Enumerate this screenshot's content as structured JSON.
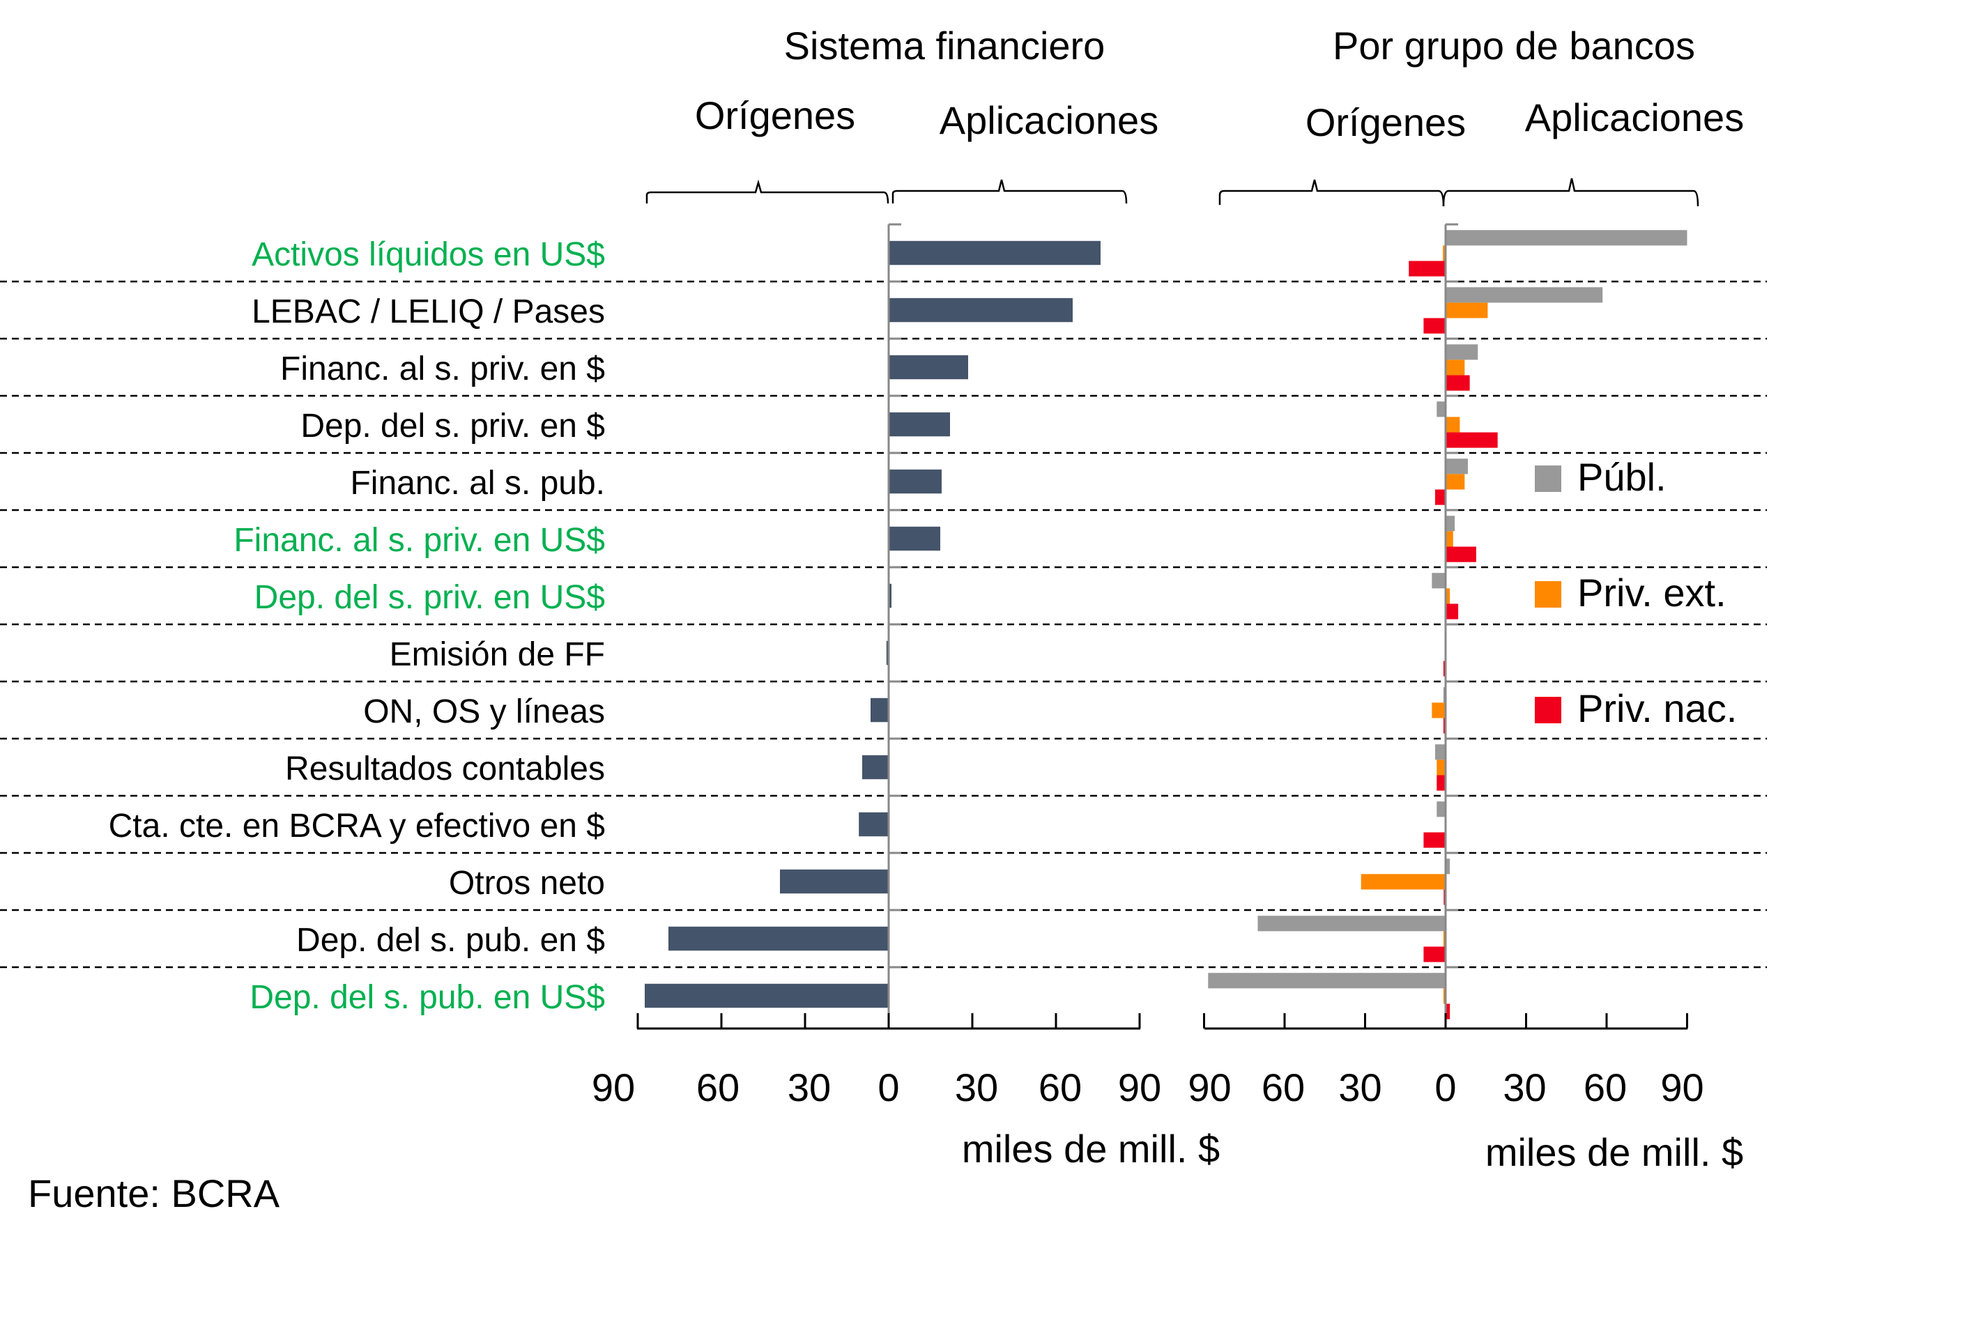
{
  "chart_data": [
    {
      "type": "bar",
      "orientation": "horizontal",
      "title": "Sistema financiero",
      "left_header": "Orígenes",
      "right_header": "Aplicaciones",
      "xlabel": "miles de mill. $",
      "xlim": [
        -90,
        90
      ],
      "ticks": [
        -90,
        -60,
        -30,
        0,
        30,
        60,
        90
      ],
      "tick_labels": [
        "90",
        "60",
        "30",
        "0",
        "30",
        "60",
        "90"
      ],
      "grid": "dashed row separators",
      "categories": [
        "Activos líquidos en US$",
        "LEBAC / LELIQ / Pases",
        "Financ. al s. priv. en $",
        "Dep. del s. priv. en $",
        "Financ. al s. pub.",
        "Financ. al s. priv. en US$",
        "Dep. del s. priv. en US$",
        "Emisión de FF",
        "ON, OS y líneas",
        "Resultados contables",
        "Cta. cte. en BCRA y efectivo en $",
        "Otros neto",
        "Dep. del s. pub. en $",
        "Dep. del s. pub. en US$"
      ],
      "category_highlight": [
        true,
        false,
        false,
        false,
        false,
        true,
        true,
        false,
        false,
        false,
        false,
        false,
        false,
        true
      ],
      "series": [
        {
          "name": "Sistema financiero",
          "color": "#44546A",
          "values": [
            76,
            66,
            28.5,
            22,
            19,
            18.5,
            1,
            -0.8,
            -6.5,
            -9.5,
            -10.7,
            -39,
            -79,
            -87.5
          ]
        }
      ]
    },
    {
      "type": "bar",
      "orientation": "horizontal",
      "title": "Por grupo de bancos",
      "left_header": "Orígenes",
      "right_header": "Aplicaciones",
      "xlabel": "miles de mill. $",
      "xlim": [
        -90,
        90
      ],
      "ticks": [
        -90,
        -60,
        -30,
        0,
        30,
        60,
        90
      ],
      "tick_labels": [
        "90",
        "60",
        "30",
        "0",
        "30",
        "60",
        "90"
      ],
      "legend_position": "right",
      "series": [
        {
          "name": "Públ.",
          "color": "#999999",
          "values": [
            90,
            58.5,
            12,
            -3.3,
            8.3,
            3.4,
            -5.1,
            0,
            -0.8,
            -3.9,
            -3.3,
            1.6,
            -70,
            -88.5
          ]
        },
        {
          "name": "Priv. ext.",
          "color": "#FF8800",
          "values": [
            -1,
            15.7,
            7.1,
            5.3,
            7.1,
            2.8,
            1.6,
            0,
            -5.1,
            -3.3,
            0,
            -31.5,
            -0.8,
            -0.8
          ]
        },
        {
          "name": "Priv. nac.",
          "color": "#F0001C",
          "values": [
            -13.7,
            -8.2,
            9,
            19.4,
            -3.9,
            11.4,
            4.7,
            -0.8,
            -0.8,
            -3.3,
            -8.2,
            -0.7,
            -8.2,
            1.6
          ]
        }
      ]
    }
  ],
  "colors": {
    "highlight_label": "#00B050",
    "label": "#000000"
  },
  "footer": {
    "source": "Fuente: BCRA"
  }
}
